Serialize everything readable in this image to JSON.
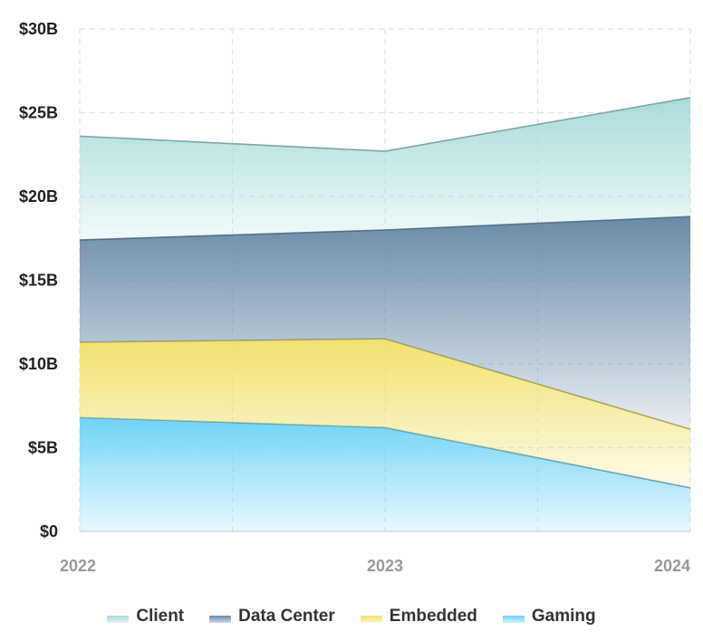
{
  "chart_data": {
    "type": "area",
    "stacked": true,
    "x": [
      "2022",
      "2023",
      "2024"
    ],
    "ylim": [
      0,
      30
    ],
    "y_ticks": [
      {
        "value": 0,
        "label": "$0"
      },
      {
        "value": 5,
        "label": "$5B"
      },
      {
        "value": 10,
        "label": "$10B"
      },
      {
        "value": 15,
        "label": "$15B"
      },
      {
        "value": 20,
        "label": "$20B"
      },
      {
        "value": 25,
        "label": "$25B"
      },
      {
        "value": 30,
        "label": "$30B"
      }
    ],
    "grid": true,
    "legend_position": "bottom",
    "series": [
      {
        "name": "Gaming",
        "values": [
          6.8,
          6.2,
          2.6
        ],
        "color": "#6fd3f7"
      },
      {
        "name": "Embedded",
        "values": [
          4.5,
          5.3,
          3.5
        ],
        "color": "#f0e26e"
      },
      {
        "name": "Data Center",
        "values": [
          6.1,
          6.5,
          12.7
        ],
        "color": "#6a8aa6"
      },
      {
        "name": "Client",
        "values": [
          6.2,
          4.7,
          7.1
        ],
        "color": "#a8dcd9"
      }
    ]
  },
  "legend": {
    "items": [
      {
        "label": "Client",
        "color": "#a8dcd9"
      },
      {
        "label": "Data Center",
        "color": "#6a8aa6"
      },
      {
        "label": "Embedded",
        "color": "#f0e26e"
      },
      {
        "label": "Gaming",
        "color": "#6fd3f7"
      }
    ]
  }
}
